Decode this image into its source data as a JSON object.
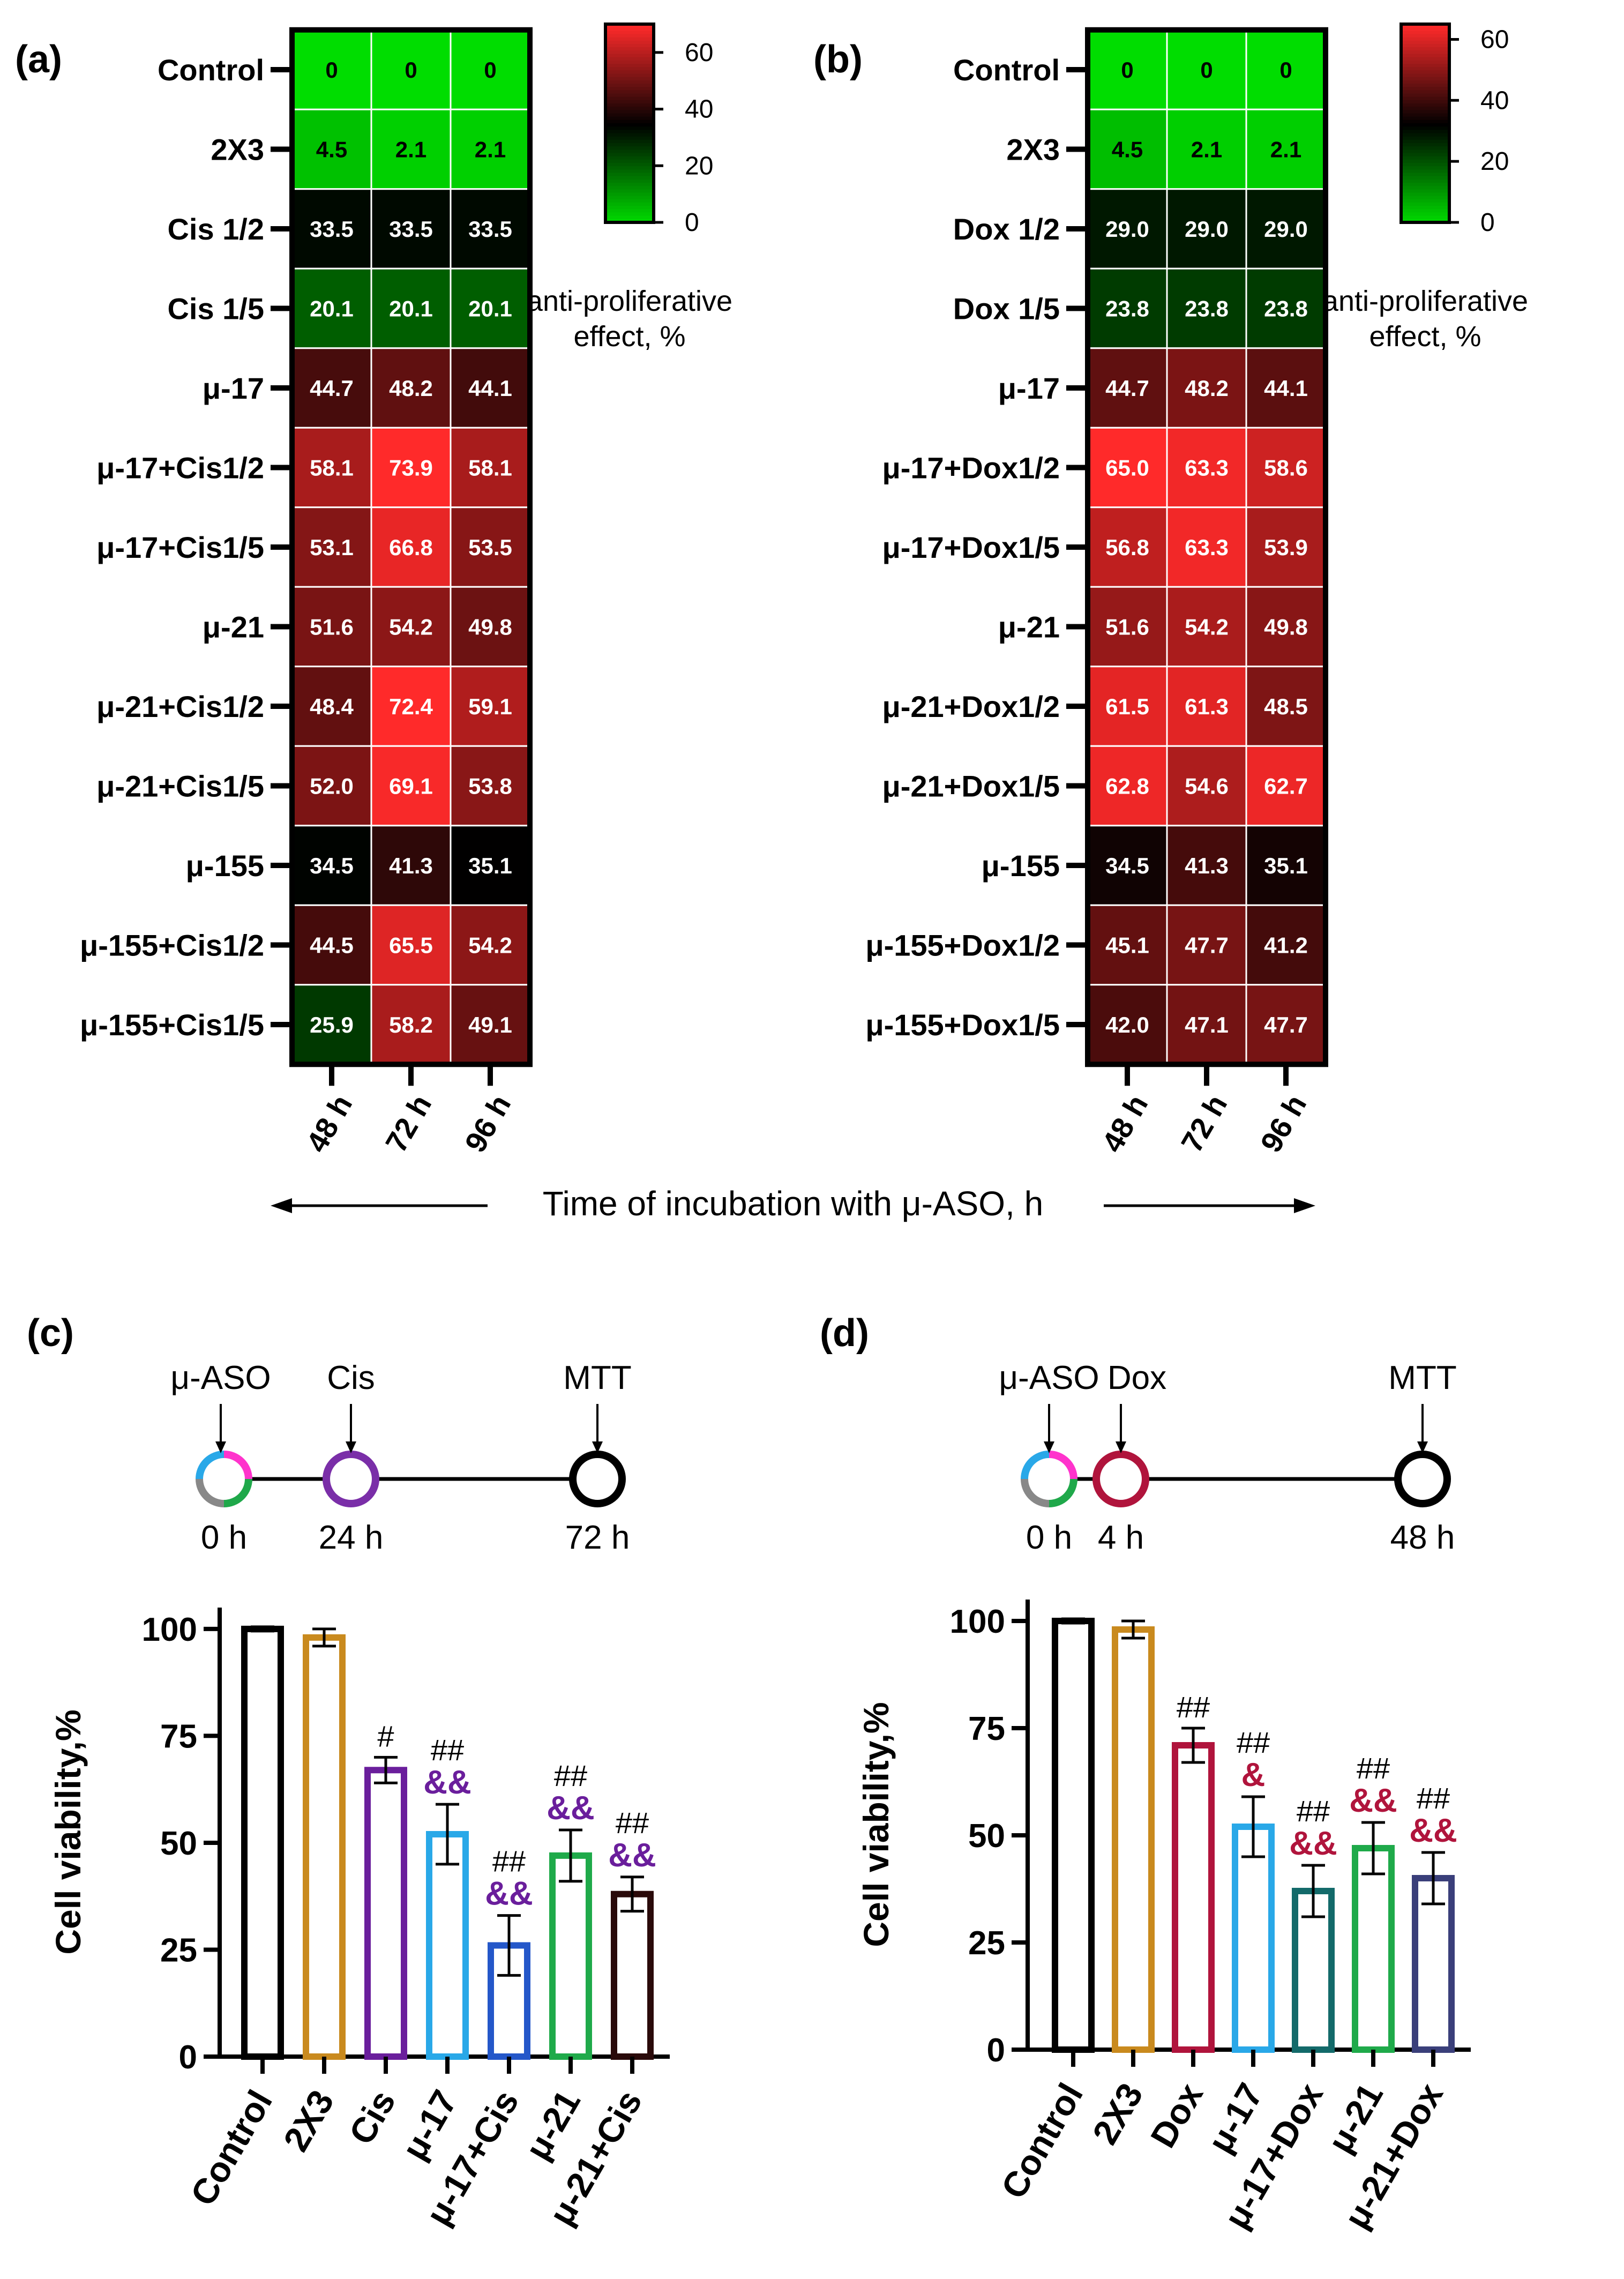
{
  "colors": {
    "heat_low": "#00dd00",
    "heat_mid": "#000000",
    "heat_high": "#ff2a2a",
    "bars_c": [
      "#000000",
      "#c98a1e",
      "#6a1e9c",
      "#29a8e8",
      "#2457c9",
      "#1faa4a",
      "#2a0a0a"
    ],
    "bars_d": [
      "#000000",
      "#c98a1e",
      "#b0143c",
      "#29a8e8",
      "#136a6a",
      "#1faa4a",
      "#3a3f7a"
    ],
    "marks_c": "#6a1e9c",
    "marks_d": "#b0143c"
  },
  "chart_data": [
    {
      "panel": "(a)",
      "type": "heatmap",
      "rows": [
        "Control",
        "2X3",
        "Cis 1/2",
        "Cis 1/5",
        "μ-17",
        "μ-17+Cis1/2",
        "μ-17+Cis1/5",
        "μ-21",
        "μ-21+Cis1/2",
        "μ-21+Cis1/5",
        "μ-155",
        "μ-155+Cis1/2",
        "μ-155+Cis1/5"
      ],
      "columns": [
        "48 h",
        "72 h",
        "96 h"
      ],
      "values": [
        [
          "0",
          "0",
          "0"
        ],
        [
          "4.5",
          "2.1",
          "2.1"
        ],
        [
          "33.5",
          "33.5",
          "33.5"
        ],
        [
          "20.1",
          "20.1",
          "20.1"
        ],
        [
          "44.7",
          "48.2",
          "44.1"
        ],
        [
          "58.1",
          "73.9",
          "58.1"
        ],
        [
          "53.1",
          "66.8",
          "53.5"
        ],
        [
          "51.6",
          "54.2",
          "49.8"
        ],
        [
          "48.4",
          "72.4",
          "59.1"
        ],
        [
          "52.0",
          "69.1",
          "53.8"
        ],
        [
          "34.5",
          "41.3",
          "35.1"
        ],
        [
          "44.5",
          "65.5",
          "54.2"
        ],
        [
          "25.9",
          "58.2",
          "49.1"
        ]
      ],
      "colorbar": {
        "ticks": [
          "60",
          "40",
          "20",
          "0"
        ],
        "range": [
          0,
          70
        ],
        "label": [
          "anti-proliferative",
          "effect, %"
        ]
      }
    },
    {
      "panel": "(b)",
      "type": "heatmap",
      "rows": [
        "Control",
        "2X3",
        "Dox 1/2",
        "Dox 1/5",
        "μ-17",
        "μ-17+Dox1/2",
        "μ-17+Dox1/5",
        "μ-21",
        "μ-21+Dox1/2",
        "μ-21+Dox1/5",
        "μ-155",
        "μ-155+Dox1/2",
        "μ-155+Dox1/5"
      ],
      "columns": [
        "48 h",
        "72 h",
        "96 h"
      ],
      "values": [
        [
          "0",
          "0",
          "0"
        ],
        [
          "4.5",
          "2.1",
          "2.1"
        ],
        [
          "29.0",
          "29.0",
          "29.0"
        ],
        [
          "23.8",
          "23.8",
          "23.8"
        ],
        [
          "44.7",
          "48.2",
          "44.1"
        ],
        [
          "65.0",
          "63.3",
          "58.6"
        ],
        [
          "56.8",
          "63.3",
          "53.9"
        ],
        [
          "51.6",
          "54.2",
          "49.8"
        ],
        [
          "61.5",
          "61.3",
          "48.5"
        ],
        [
          "62.8",
          "54.6",
          "62.7"
        ],
        [
          "34.5",
          "41.3",
          "35.1"
        ],
        [
          "45.1",
          "47.7",
          "41.2"
        ],
        [
          "42.0",
          "47.1",
          "47.7"
        ]
      ],
      "colorbar": {
        "ticks": [
          "60",
          "40",
          "20",
          "0"
        ],
        "range": [
          0,
          65
        ],
        "label": [
          "anti-proliferative",
          "effect, %"
        ]
      }
    },
    {
      "panel": "(c)",
      "type": "bar",
      "categories": [
        "Control",
        "2X3",
        "Cis",
        "μ-17",
        "μ-17+Cis",
        "μ-21",
        "μ-21+Cis"
      ],
      "values": [
        100,
        98,
        67,
        52,
        26,
        47,
        38
      ],
      "errors": [
        0.5,
        2,
        3,
        7,
        7,
        6,
        4
      ],
      "marks_top": [
        "",
        "",
        "#",
        "##",
        "##",
        "##",
        "##"
      ],
      "marks_bottom": [
        "",
        "",
        "",
        "&&",
        "&&",
        "&&",
        "&&"
      ],
      "ylabel": "Cell viability,%",
      "yticks": [
        "0",
        "25",
        "50",
        "75",
        "100"
      ],
      "ylim": [
        0,
        105
      ],
      "timeline": {
        "top_labels": [
          "μ-ASO",
          "Cis",
          "MTT"
        ],
        "bottom_labels": [
          "0 h",
          "24 h",
          "72 h"
        ]
      }
    },
    {
      "panel": "(d)",
      "type": "bar",
      "categories": [
        "Control",
        "2X3",
        "Dox",
        "μ-17",
        "μ-17+Dox",
        "μ-21",
        "μ-21+Dox"
      ],
      "values": [
        100,
        98,
        71,
        52,
        37,
        47,
        40
      ],
      "errors": [
        0.5,
        2,
        4,
        7,
        6,
        6,
        6
      ],
      "marks_top": [
        "",
        "",
        "##",
        "##",
        "##",
        "##",
        "##"
      ],
      "marks_bottom": [
        "",
        "",
        "",
        "&",
        "&&",
        "&&",
        "&&"
      ],
      "ylabel": "Cell viability,%",
      "yticks": [
        "0",
        "25",
        "50",
        "75",
        "100"
      ],
      "ylim": [
        0,
        105
      ],
      "timeline": {
        "top_labels": [
          "μ-ASO",
          "Dox",
          "MTT"
        ],
        "bottom_labels": [
          "0 h",
          "4 h",
          "48 h"
        ]
      }
    }
  ],
  "shared_xlabel": "Time of incubation with μ-ASO, h"
}
